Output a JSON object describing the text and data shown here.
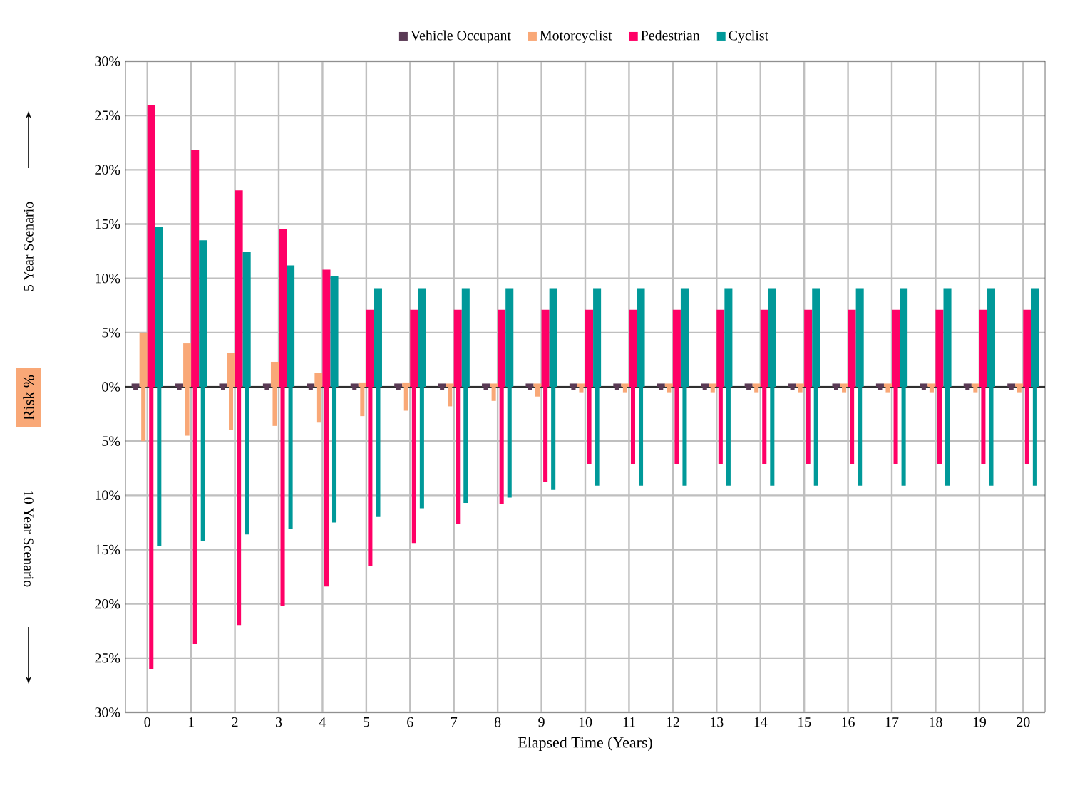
{
  "chart_data": {
    "type": "bar",
    "xlabel": "Elapsed Time (Years)",
    "ylabel": "Risk %",
    "annotations": [
      "5 Year Scenario",
      "10 Year Scenario"
    ],
    "categories": [
      "0",
      "1",
      "2",
      "3",
      "4",
      "5",
      "6",
      "7",
      "8",
      "9",
      "10",
      "11",
      "12",
      "13",
      "14",
      "15",
      "16",
      "17",
      "18",
      "19",
      "20"
    ],
    "series": [
      {
        "name": "Vehicle Occupant",
        "color": "#5a3a55",
        "values": [
          0.3,
          0.3,
          0.3,
          0.3,
          0.3,
          0.3,
          0.3,
          0.3,
          0.3,
          0.3,
          0.3,
          0.3,
          0.3,
          0.3,
          0.3,
          0.3,
          0.3,
          0.3,
          0.3,
          0.3,
          0.3
        ]
      },
      {
        "name": "Motorcyclist",
        "color": "#f9a877",
        "values": [
          5,
          4,
          3.1,
          2.3,
          1.3,
          0.4,
          0.4,
          0.3,
          0.3,
          0.3,
          0.3,
          0.3,
          0.3,
          0.3,
          0.3,
          0.3,
          0.3,
          0.3,
          0.3,
          0.3,
          0.3
        ]
      },
      {
        "name": "Pedestrian",
        "color": "#ff0066",
        "values": [
          26,
          21.8,
          18.1,
          14.5,
          10.8,
          7.1,
          7.1,
          7.1,
          7.1,
          7.1,
          7.1,
          7.1,
          7.1,
          7.1,
          7.1,
          7.1,
          7.1,
          7.1,
          7.1,
          7.1,
          7.1
        ]
      },
      {
        "name": "Cyclist",
        "color": "#009999",
        "values": [
          14.7,
          13.5,
          12.4,
          11.2,
          10.2,
          9.1,
          9.1,
          9.1,
          9.1,
          9.1,
          9.1,
          9.1,
          9.1,
          9.1,
          9.1,
          9.1,
          9.1,
          9.1,
          9.1,
          9.1,
          9.1
        ]
      },
      {
        "color": "#5a3a55",
        "values": [
          -0.3,
          -0.3,
          -0.3,
          -0.3,
          -0.3,
          -0.3,
          -0.3,
          -0.3,
          -0.3,
          -0.3,
          -0.3,
          -0.3,
          -0.3,
          -0.3,
          -0.3,
          -0.3,
          -0.3,
          -0.3,
          -0.3,
          -0.3,
          -0.3
        ]
      },
      {
        "color": "#f9a877",
        "values": [
          -5,
          -4.5,
          -4,
          -3.6,
          -3.3,
          -2.7,
          -2.2,
          -1.8,
          -1.3,
          -0.9,
          -0.5,
          -0.5,
          -0.5,
          -0.5,
          -0.5,
          -0.5,
          -0.5,
          -0.5,
          -0.5,
          -0.5,
          -0.5
        ]
      },
      {
        "color": "#ff0066",
        "values": [
          -26,
          -23.7,
          -22,
          -20.2,
          -18.4,
          -16.5,
          -14.4,
          -12.6,
          -10.8,
          -8.8,
          -7.1,
          -7.1,
          -7.1,
          -7.1,
          -7.1,
          -7.1,
          -7.1,
          -7.1,
          -7.1,
          -7.1,
          -7.1
        ]
      },
      {
        "color": "#009999",
        "values": [
          -14.7,
          -14.2,
          -13.6,
          -13.1,
          -12.5,
          -12,
          -11.2,
          -10.7,
          -10.2,
          -9.5,
          -9.1,
          -9.1,
          -9.1,
          -9.1,
          -9.1,
          -9.1,
          -9.1,
          -9.1,
          -9.1,
          -9.1,
          -9.1
        ]
      }
    ],
    "ylim": [
      -30,
      30
    ],
    "yticks": [
      {
        "value": -30,
        "label": "30%"
      },
      {
        "value": -25,
        "label": "25%"
      },
      {
        "value": -20,
        "label": "20%"
      },
      {
        "value": -15,
        "label": "15%"
      },
      {
        "value": -10,
        "label": "10%"
      },
      {
        "value": -5,
        "label": "5%"
      },
      {
        "value": 0,
        "label": "0%"
      },
      {
        "value": 5,
        "label": "5%"
      },
      {
        "value": 10,
        "label": "10%"
      },
      {
        "value": 15,
        "label": "15%"
      },
      {
        "value": 20,
        "label": "20%"
      },
      {
        "value": 25,
        "label": "25%"
      },
      {
        "value": 30,
        "label": "30%"
      }
    ],
    "grid": true,
    "legend": "top"
  }
}
